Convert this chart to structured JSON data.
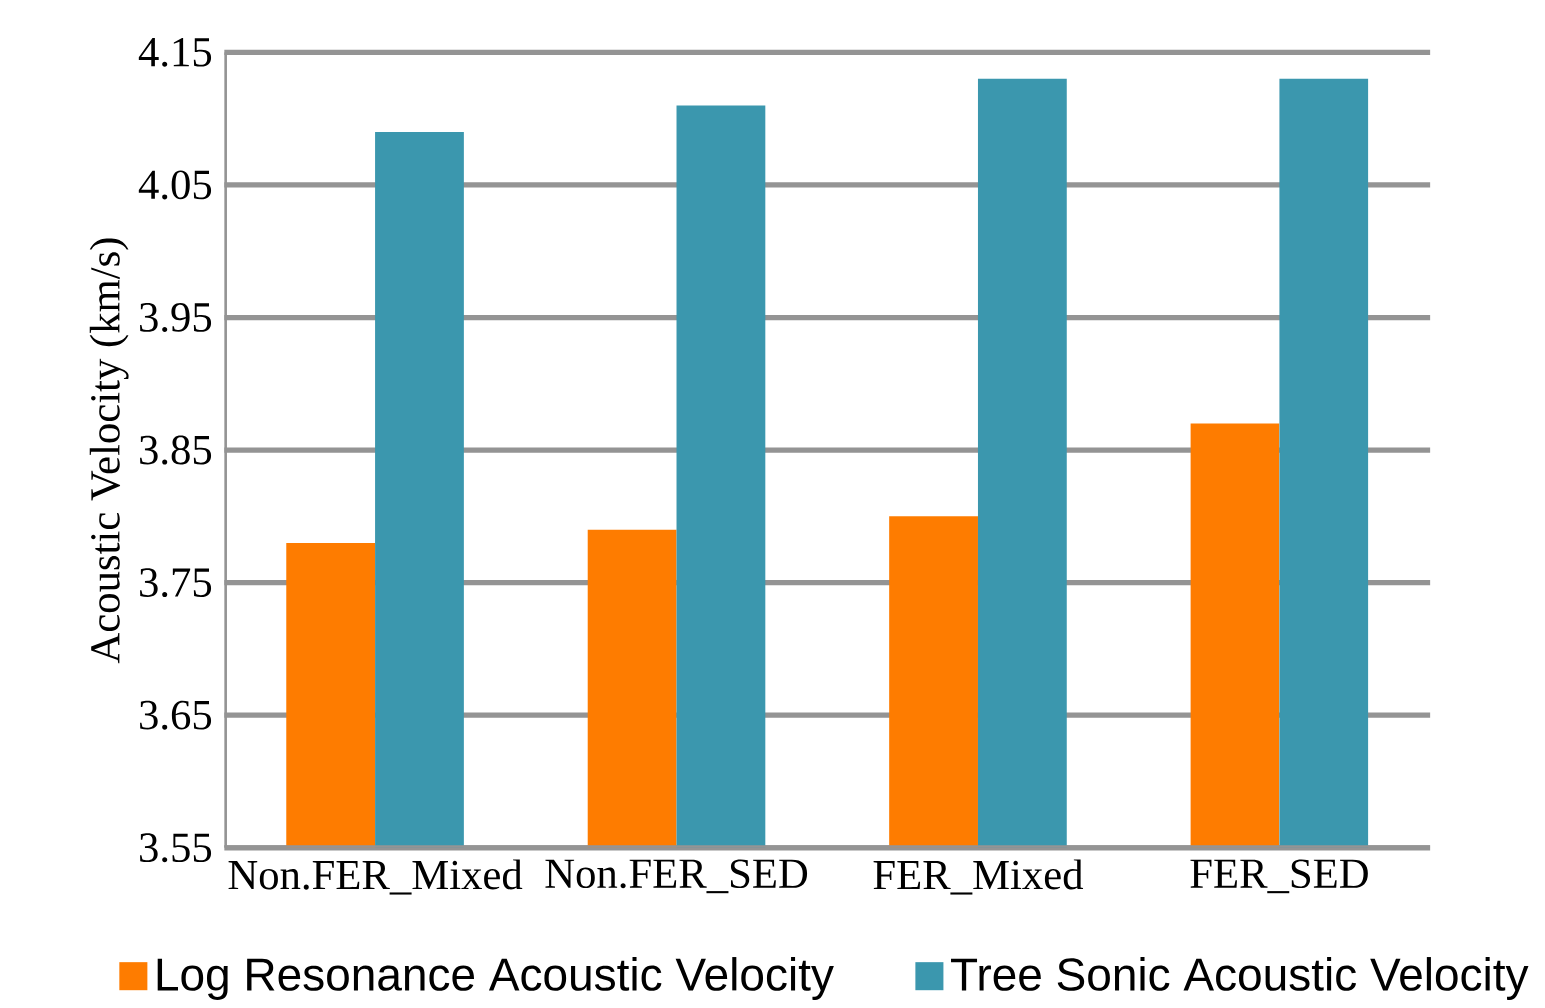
{
  "chart_data": {
    "type": "bar",
    "ylabel": "Acoustic Velocity (km/s)",
    "categories": [
      "Non.FER_Mixed",
      "Non.FER_SED",
      "FER_Mixed",
      "FER_SED"
    ],
    "series": [
      {
        "name": "Log Resonance Acoustic Velocity",
        "color": "#fe7c00",
        "values": [
          3.78,
          3.79,
          3.8,
          3.87
        ]
      },
      {
        "name": "Tree Sonic Acoustic Velocity",
        "color": "#3b97ae",
        "values": [
          4.09,
          4.11,
          4.13,
          4.13
        ]
      }
    ],
    "ylim": [
      3.55,
      4.15
    ],
    "yticks": [
      3.55,
      3.65,
      3.75,
      3.85,
      3.95,
      4.05,
      4.15
    ],
    "grid": "y",
    "legend": "bottom"
  }
}
